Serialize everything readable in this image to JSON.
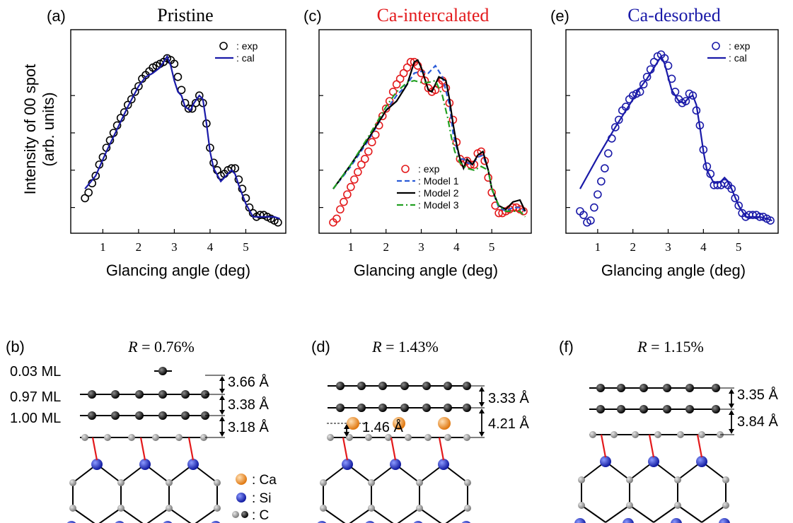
{
  "panels": {
    "a": {
      "letter": "(a)",
      "title": "Pristine",
      "title_color": "#000000"
    },
    "c": {
      "letter": "(c)",
      "title": "Ca-intercalated",
      "title_color": "#e31a1c"
    },
    "e": {
      "letter": "(e)",
      "title": "Ca-desorbed",
      "title_color": "#1a1aa8"
    },
    "b": {
      "letter": "(b)",
      "r_symbol": "R",
      "r_value": " = 0.76%"
    },
    "d": {
      "letter": "(d)",
      "r_symbol": "R",
      "r_value": " = 1.43%"
    },
    "f": {
      "letter": "(f)",
      "r_symbol": "R",
      "r_value": " = 1.15%"
    }
  },
  "ylabel_line1": "Intensity of 00 spot",
  "ylabel_line2": "(arb. units)",
  "xlabel": "Glancing angle (deg)",
  "x_ticks": [
    "1",
    "2",
    "3",
    "4",
    "5"
  ],
  "structure_b": {
    "coverages": [
      "0.03 ML",
      "0.97 ML",
      "1.00 ML"
    ],
    "spacings": [
      "3.66 Å",
      "3.38 Å",
      "3.18 Å"
    ]
  },
  "structure_d": {
    "spacings": [
      "3.33 Å",
      "4.21 Å"
    ],
    "ca_height": "1.46 Å"
  },
  "structure_f": {
    "spacings": [
      "3.35 Å",
      "3.84 Å"
    ]
  },
  "atom_legend": [
    {
      "symbol": ": Ca",
      "name": "ca"
    },
    {
      "symbol": ": Si",
      "name": "si"
    },
    {
      "symbol": ": C",
      "name": "c"
    }
  ],
  "colors": {
    "exp_a": "#000000",
    "exp_c": "#e31a1c",
    "exp_e": "#1a1aa8",
    "cal": "#1a1aa8",
    "model1": "#2a5bd7",
    "model2": "#000000",
    "model3": "#22a022",
    "ca_atom": "#f28c28",
    "si_atom": "#1f2fc8",
    "c_atom": "#999999",
    "graphene_atom": "#111111",
    "bond_red": "#e31a1c"
  },
  "chart_data": [
    {
      "type": "line",
      "panel": "a",
      "title": "Pristine",
      "xlabel": "Glancing angle (deg)",
      "ylabel": "Intensity of 00 spot (arb. units)",
      "xlim": [
        0.3,
        6.0
      ],
      "ylim": [
        0,
        100
      ],
      "legend": {
        "position": "top-right",
        "entries": [
          ": exp",
          ": cal"
        ]
      },
      "series": [
        {
          "name": ": exp",
          "style": "open-circle",
          "x": [
            0.5,
            0.6,
            0.7,
            0.8,
            0.9,
            1.0,
            1.1,
            1.2,
            1.3,
            1.4,
            1.5,
            1.6,
            1.7,
            1.8,
            1.9,
            2.0,
            2.1,
            2.2,
            2.3,
            2.4,
            2.5,
            2.6,
            2.7,
            2.8,
            2.9,
            3.0,
            3.1,
            3.2,
            3.3,
            3.4,
            3.5,
            3.6,
            3.7,
            3.8,
            3.9,
            4.0,
            4.1,
            4.2,
            4.3,
            4.4,
            4.5,
            4.6,
            4.7,
            4.8,
            4.9,
            5.0,
            5.1,
            5.2,
            5.3,
            5.4,
            5.5,
            5.6,
            5.7,
            5.8,
            5.9
          ],
          "y": [
            15,
            18,
            23,
            27,
            33,
            37,
            42,
            46,
            50,
            54,
            58,
            61,
            65,
            68,
            72,
            75,
            79,
            81,
            83,
            85,
            86,
            87,
            88,
            90,
            89,
            87,
            80,
            73,
            66,
            63,
            63,
            66,
            70,
            66,
            55,
            42,
            34,
            30,
            27,
            28,
            30,
            31,
            31,
            25,
            20,
            15,
            10,
            7,
            5,
            6,
            6,
            5,
            4,
            3,
            2
          ]
        },
        {
          "name": ": cal",
          "style": "line",
          "x": [
            0.5,
            0.8,
            1.1,
            1.4,
            1.7,
            2.0,
            2.2,
            2.4,
            2.6,
            2.7,
            2.8,
            2.9,
            3.0,
            3.1,
            3.2,
            3.3,
            3.45,
            3.55,
            3.7,
            3.8,
            3.9,
            4.0,
            4.1,
            4.3,
            4.5,
            4.6,
            4.7,
            4.8,
            5.0,
            5.2,
            5.4,
            5.6,
            5.8,
            5.95
          ],
          "y": [
            20,
            27,
            40,
            52,
            64,
            75,
            80,
            82,
            85,
            88,
            91,
            86,
            78,
            72,
            70,
            64,
            62,
            66,
            70,
            68,
            55,
            40,
            31,
            24,
            28,
            30,
            28,
            22,
            12,
            5,
            5,
            5,
            5,
            4
          ]
        }
      ]
    },
    {
      "type": "line",
      "panel": "c",
      "title": "Ca-intercalated",
      "xlabel": "Glancing angle (deg)",
      "xlim": [
        0.3,
        6.0
      ],
      "ylim": [
        0,
        100
      ],
      "legend": {
        "position": "bottom-center",
        "entries": [
          ": exp",
          ": Model 1",
          ": Model 2",
          ": Model 3"
        ]
      },
      "series": [
        {
          "name": ": exp",
          "style": "open-circle",
          "x": [
            0.5,
            0.6,
            0.7,
            0.8,
            0.9,
            1.0,
            1.1,
            1.2,
            1.3,
            1.4,
            1.5,
            1.6,
            1.7,
            1.8,
            1.9,
            2.0,
            2.1,
            2.2,
            2.3,
            2.4,
            2.5,
            2.6,
            2.7,
            2.8,
            2.9,
            3.0,
            3.1,
            3.2,
            3.3,
            3.4,
            3.5,
            3.6,
            3.7,
            3.8,
            3.9,
            4.0,
            4.1,
            4.2,
            4.3,
            4.4,
            4.5,
            4.6,
            4.7,
            4.8,
            4.9,
            5.0,
            5.1,
            5.2,
            5.3,
            5.4,
            5.5,
            5.6,
            5.7,
            5.8,
            5.9
          ],
          "y": [
            2,
            4,
            9,
            13,
            17,
            21,
            25,
            29,
            33,
            36,
            40,
            45,
            49,
            54,
            59,
            63,
            67,
            72,
            76,
            79,
            82,
            85,
            88,
            88,
            86,
            82,
            78,
            74,
            72,
            73,
            76,
            78,
            74,
            66,
            57,
            45,
            36,
            34,
            35,
            33,
            33,
            39,
            40,
            35,
            26,
            18,
            11,
            7,
            7,
            8,
            9,
            10,
            10,
            9,
            8
          ]
        },
        {
          "name": ": Model 1",
          "style": "dashed",
          "x": [
            0.5,
            1.0,
            1.5,
            2.0,
            2.3,
            2.6,
            2.8,
            3.0,
            3.2,
            3.4,
            3.6,
            3.8,
            3.9,
            4.0,
            4.1,
            4.2,
            4.3,
            4.45,
            4.6,
            4.75,
            4.9,
            5.0,
            5.2,
            5.4,
            5.6,
            5.8,
            5.95
          ],
          "y": [
            20,
            32,
            46,
            62,
            70,
            76,
            82,
            83,
            82,
            86,
            80,
            65,
            50,
            42,
            36,
            36,
            34,
            33,
            37,
            38,
            30,
            20,
            10,
            8,
            10,
            10,
            8
          ]
        },
        {
          "name": ": Model 2",
          "style": "solid",
          "x": [
            0.5,
            1.0,
            1.5,
            2.0,
            2.3,
            2.6,
            2.8,
            2.9,
            3.0,
            3.1,
            3.2,
            3.3,
            3.5,
            3.7,
            3.8,
            3.9,
            4.0,
            4.1,
            4.2,
            4.3,
            4.45,
            4.6,
            4.75,
            4.9,
            5.0,
            5.2,
            5.4,
            5.6,
            5.8,
            5.95
          ],
          "y": [
            20,
            33,
            47,
            62,
            67,
            76,
            88,
            89,
            85,
            79,
            73,
            72,
            80,
            78,
            68,
            55,
            44,
            36,
            31,
            36,
            33,
            38,
            40,
            30,
            20,
            11,
            9,
            13,
            14,
            8
          ]
        },
        {
          "name": ": Model 3",
          "style": "dash-dot",
          "x": [
            0.5,
            1.0,
            1.5,
            2.0,
            2.3,
            2.6,
            2.8,
            3.0,
            3.2,
            3.4,
            3.6,
            3.75,
            3.85,
            3.95,
            4.1,
            4.3,
            4.5,
            4.7,
            4.9,
            5.0,
            5.2,
            5.4,
            5.6,
            5.8,
            5.95
          ],
          "y": [
            20,
            33,
            48,
            64,
            72,
            77,
            78,
            77,
            77,
            78,
            70,
            58,
            48,
            40,
            34,
            31,
            30,
            32,
            30,
            20,
            11,
            8,
            8,
            8,
            5
          ]
        }
      ]
    },
    {
      "type": "line",
      "panel": "e",
      "title": "Ca-desorbed",
      "xlabel": "Glancing angle (deg)",
      "xlim": [
        0.3,
        6.0
      ],
      "ylim": [
        0,
        100
      ],
      "legend": {
        "position": "top-right",
        "entries": [
          ": exp",
          ": cal"
        ]
      },
      "series": [
        {
          "name": ": exp",
          "style": "open-circle",
          "x": [
            0.5,
            0.6,
            0.7,
            0.8,
            0.9,
            1.0,
            1.1,
            1.2,
            1.3,
            1.4,
            1.5,
            1.6,
            1.7,
            1.8,
            1.9,
            2.0,
            2.1,
            2.2,
            2.3,
            2.4,
            2.5,
            2.6,
            2.7,
            2.8,
            2.9,
            3.0,
            3.1,
            3.2,
            3.3,
            3.4,
            3.5,
            3.6,
            3.7,
            3.8,
            3.9,
            4.0,
            4.1,
            4.2,
            4.3,
            4.4,
            4.5,
            4.6,
            4.7,
            4.8,
            4.9,
            5.0,
            5.1,
            5.2,
            5.3,
            5.4,
            5.5,
            5.6,
            5.7,
            5.8,
            5.9
          ],
          "y": [
            8,
            6,
            2,
            3,
            10,
            17,
            24,
            31,
            39,
            47,
            53,
            57,
            62,
            64,
            68,
            70,
            71,
            72,
            76,
            80,
            84,
            88,
            91,
            92,
            90,
            86,
            79,
            72,
            68,
            66,
            67,
            71,
            70,
            62,
            54,
            41,
            32,
            28,
            22,
            22,
            22,
            23,
            22,
            20,
            15,
            11,
            7,
            5,
            6,
            6,
            6,
            5,
            5,
            4,
            3
          ]
        },
        {
          "name": ": cal",
          "style": "line",
          "x": [
            0.5,
            1.0,
            1.5,
            2.0,
            2.2,
            2.4,
            2.6,
            2.8,
            2.9,
            3.0,
            3.1,
            3.2,
            3.3,
            3.45,
            3.6,
            3.7,
            3.8,
            3.9,
            4.0,
            4.1,
            4.3,
            4.5,
            4.6,
            4.7,
            4.8,
            5.0,
            5.2,
            5.4,
            5.6,
            5.8,
            5.95
          ],
          "y": [
            20,
            37,
            53,
            68,
            74,
            79,
            85,
            91,
            87,
            80,
            73,
            70,
            67,
            66,
            69,
            70,
            65,
            53,
            40,
            30,
            23,
            24,
            26,
            24,
            20,
            11,
            5,
            5,
            5,
            4,
            3
          ]
        }
      ]
    }
  ]
}
